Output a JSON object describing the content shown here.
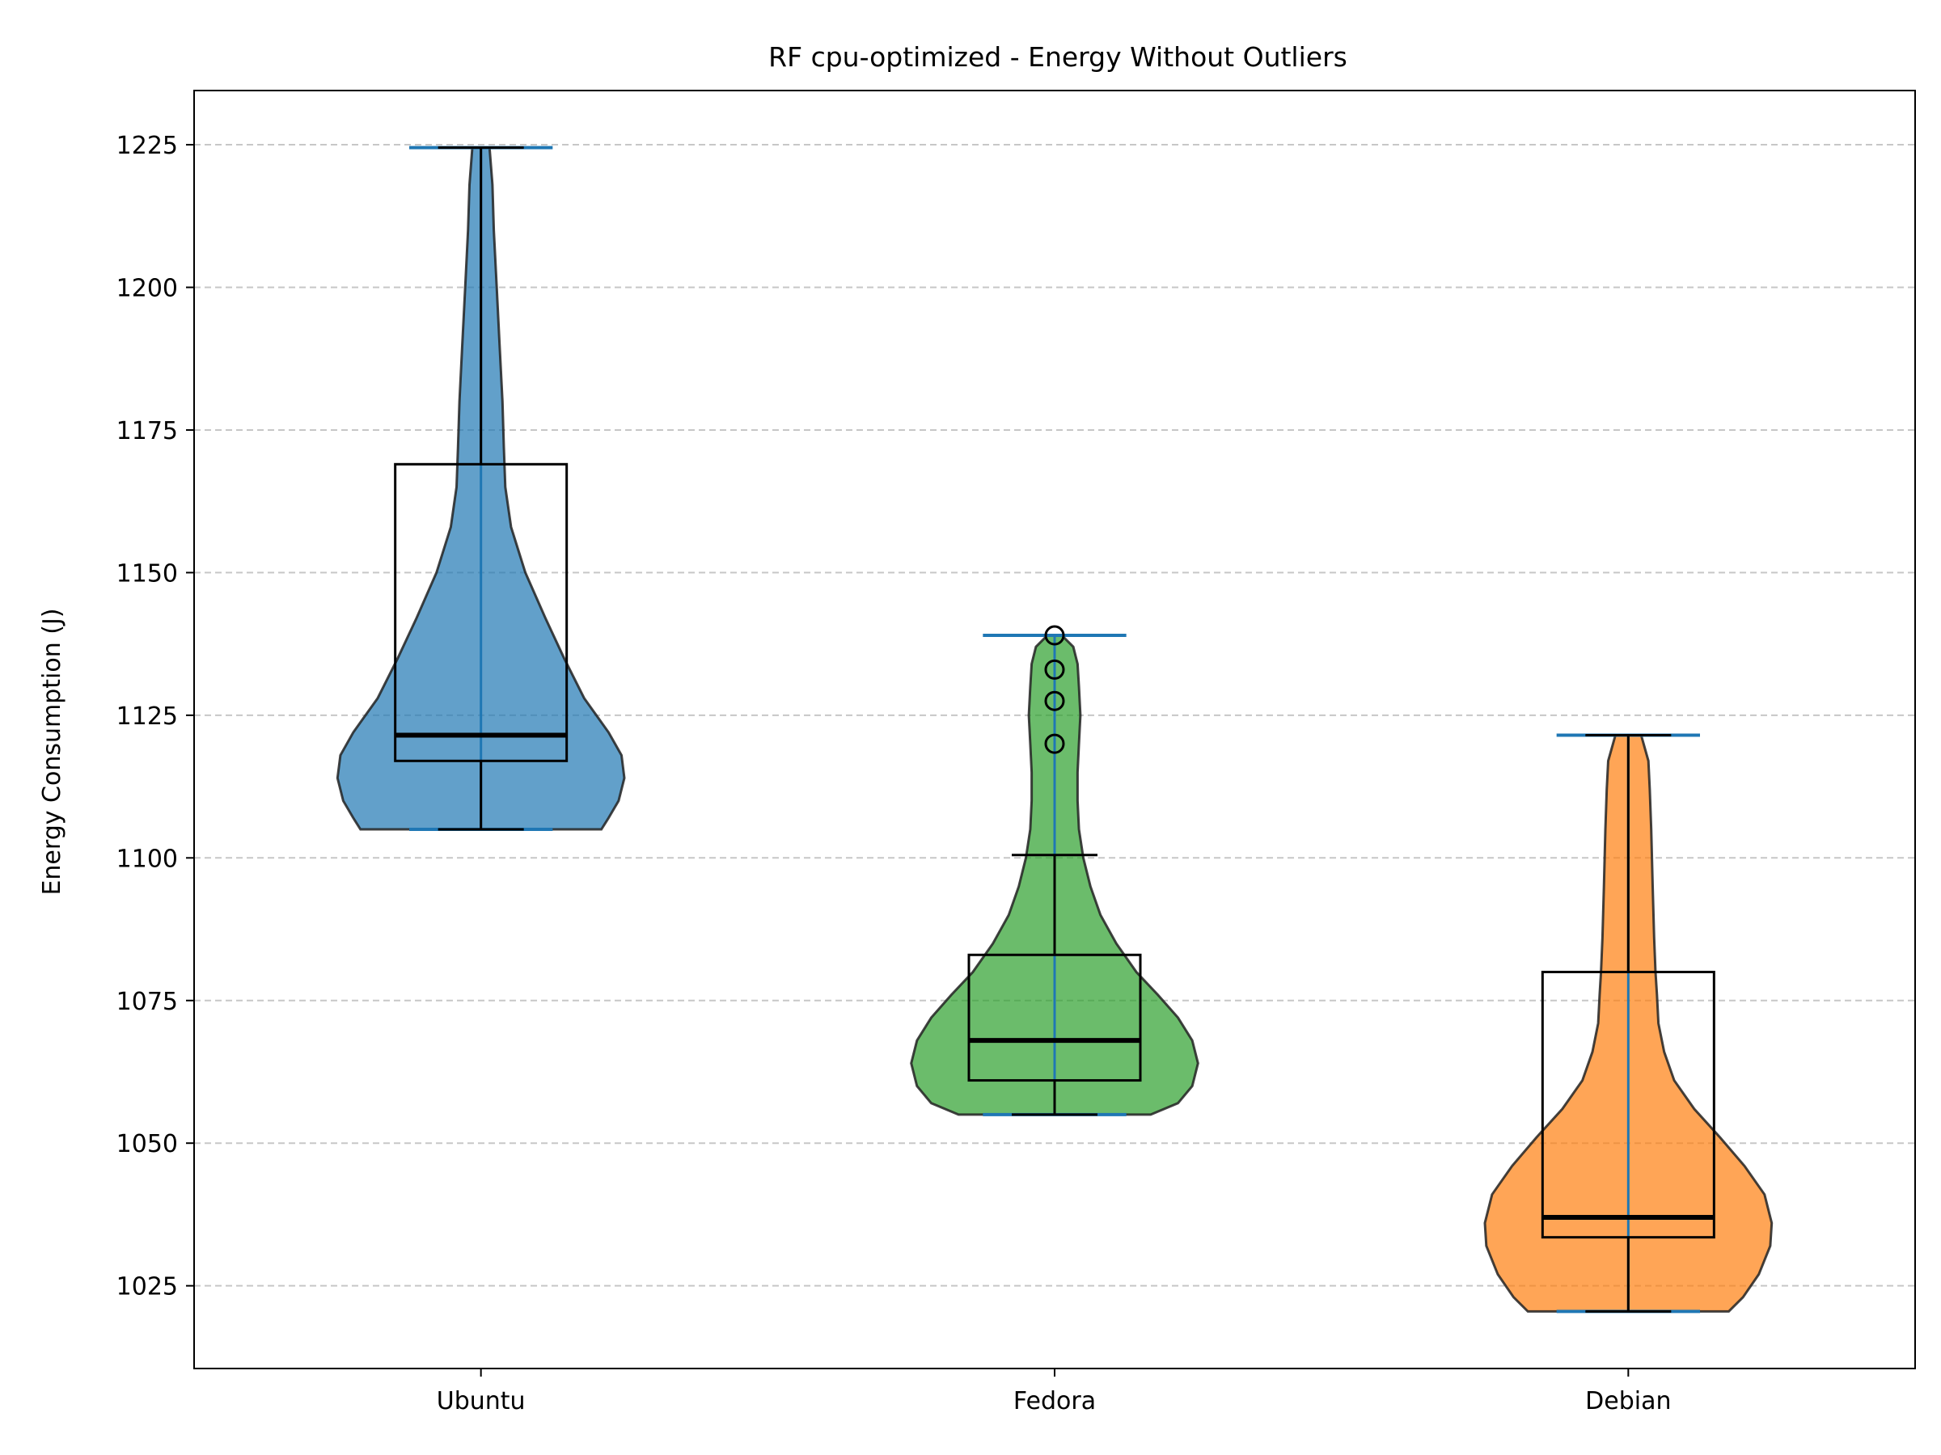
{
  "chart_data": {
    "type": "violin",
    "title": "RF cpu-optimized - Energy Without Outliers",
    "xlabel": "",
    "ylabel": "Energy Consumption (J)",
    "ylim": [
      1010.5,
      1234.5
    ],
    "yticks": [
      1025,
      1050,
      1075,
      1100,
      1125,
      1150,
      1175,
      1200,
      1225
    ],
    "grid": "y-dashed",
    "categories": [
      "Ubuntu",
      "Fedora",
      "Debian"
    ],
    "series": [
      {
        "category": "Ubuntu",
        "color": "#1f77b4",
        "min": 1105.0,
        "max": 1224.5,
        "box": {
          "q1": 1117.0,
          "median": 1121.5,
          "q3": 1169.0,
          "whisker_low": 1105.0,
          "whisker_high": 1224.5
        },
        "fliers": [],
        "density": [
          [
            1105,
            0.84
          ],
          [
            1107,
            0.89
          ],
          [
            1110,
            0.96
          ],
          [
            1114,
            1.0
          ],
          [
            1118,
            0.98
          ],
          [
            1122,
            0.89
          ],
          [
            1128,
            0.72
          ],
          [
            1135,
            0.58
          ],
          [
            1142,
            0.45
          ],
          [
            1150,
            0.31
          ],
          [
            1158,
            0.21
          ],
          [
            1165,
            0.17
          ],
          [
            1172,
            0.16
          ],
          [
            1180,
            0.15
          ],
          [
            1190,
            0.13
          ],
          [
            1200,
            0.11
          ],
          [
            1210,
            0.09
          ],
          [
            1218,
            0.08
          ],
          [
            1224.5,
            0.06
          ]
        ]
      },
      {
        "category": "Fedora",
        "color": "#2ca02c",
        "min": 1055.0,
        "max": 1139.0,
        "box": {
          "q1": 1061.0,
          "median": 1068.0,
          "q3": 1083.0,
          "whisker_low": 1055.0,
          "whisker_high": 1100.5
        },
        "fliers": [
          1120.0,
          1127.5,
          1133.0,
          1139.0
        ],
        "density": [
          [
            1055,
            0.67
          ],
          [
            1057,
            0.86
          ],
          [
            1060,
            0.96
          ],
          [
            1064,
            1.0
          ],
          [
            1068,
            0.96
          ],
          [
            1072,
            0.86
          ],
          [
            1076,
            0.72
          ],
          [
            1080,
            0.57
          ],
          [
            1085,
            0.43
          ],
          [
            1090,
            0.32
          ],
          [
            1095,
            0.25
          ],
          [
            1100,
            0.2
          ],
          [
            1105,
            0.17
          ],
          [
            1110,
            0.16
          ],
          [
            1115,
            0.16
          ],
          [
            1120,
            0.17
          ],
          [
            1125,
            0.18
          ],
          [
            1130,
            0.17
          ],
          [
            1134,
            0.16
          ],
          [
            1137,
            0.13
          ],
          [
            1139,
            0.05
          ]
        ]
      },
      {
        "category": "Debian",
        "color": "#ff7f0e",
        "min": 1020.5,
        "max": 1121.5,
        "box": {
          "q1": 1033.5,
          "median": 1037.0,
          "q3": 1080.0,
          "whisker_low": 1020.5,
          "whisker_high": 1121.5
        },
        "fliers": [],
        "density": [
          [
            1020.5,
            0.7
          ],
          [
            1023,
            0.8
          ],
          [
            1027,
            0.91
          ],
          [
            1032,
            0.99
          ],
          [
            1036,
            1.0
          ],
          [
            1041,
            0.95
          ],
          [
            1046,
            0.81
          ],
          [
            1051,
            0.64
          ],
          [
            1056,
            0.46
          ],
          [
            1061,
            0.32
          ],
          [
            1066,
            0.25
          ],
          [
            1071,
            0.21
          ],
          [
            1076,
            0.2
          ],
          [
            1080,
            0.19
          ],
          [
            1086,
            0.18
          ],
          [
            1095,
            0.17
          ],
          [
            1105,
            0.16
          ],
          [
            1112,
            0.15
          ],
          [
            1117,
            0.14
          ],
          [
            1121.5,
            0.09
          ]
        ]
      }
    ]
  }
}
